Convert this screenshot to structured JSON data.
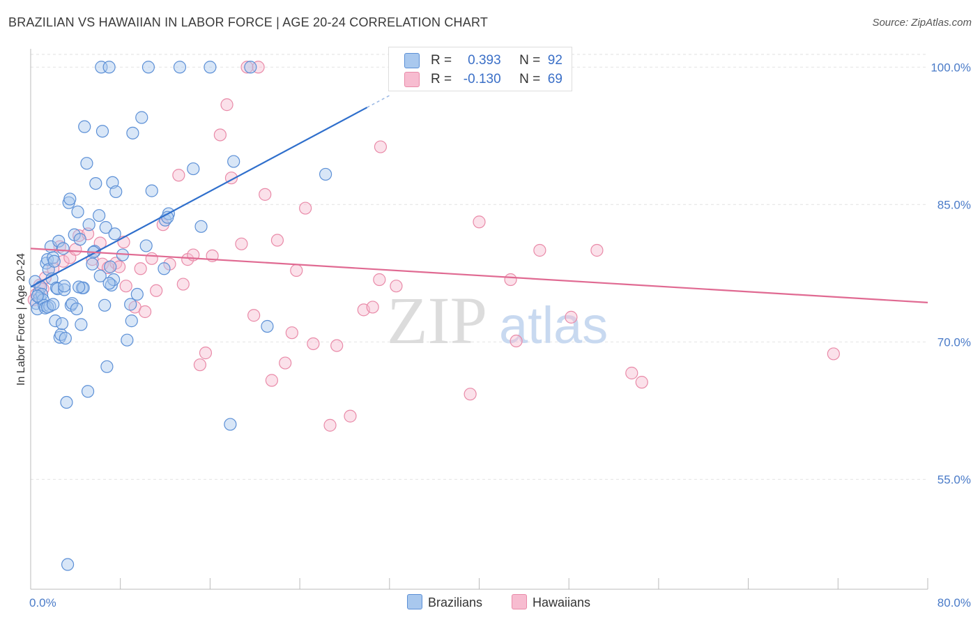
{
  "title": "BRAZILIAN VS HAWAIIAN IN LABOR FORCE | AGE 20-24 CORRELATION CHART",
  "source": "Source: ZipAtlas.com",
  "watermark": {
    "zip": "ZIP",
    "atlas": "atlas"
  },
  "colors": {
    "brazilian_fill": "#a9c8ee",
    "brazilian_stroke": "#5b8fd6",
    "brazilian_line": "#2f6fcc",
    "hawaiian_fill": "#f7bcd0",
    "hawaiian_stroke": "#e98aa8",
    "hawaiian_line": "#e06a92",
    "tick_text": "#4a7bc8",
    "grid": "#e2e2e2"
  },
  "legend": {
    "brazilian": {
      "r_label": "R =",
      "r_value": "0.393",
      "n_label": "N =",
      "n_value": "92"
    },
    "hawaiian": {
      "r_label": "R =",
      "r_value": "-0.130",
      "n_label": "N =",
      "n_value": "69"
    }
  },
  "bottom_legend": {
    "brazilians": "Brazilians",
    "hawaiians": "Hawaiians"
  },
  "chart_data": {
    "type": "scatter",
    "title": "BRAZILIAN VS HAWAIIAN IN LABOR FORCE | AGE 20-24 CORRELATION CHART",
    "xlabel": "",
    "ylabel": "In Labor Force | Age 20-24",
    "xlim": [
      0,
      80
    ],
    "ylim": [
      43,
      102
    ],
    "x_ticks": [
      0,
      8,
      16,
      24,
      32,
      40,
      48,
      56,
      64,
      72,
      80
    ],
    "x_tick_labels": [
      {
        "x": 0,
        "label": "0.0%"
      },
      {
        "x": 80,
        "label": "80.0%"
      }
    ],
    "y_ticks": [
      {
        "y": 55,
        "label": "55.0%"
      },
      {
        "y": 70,
        "label": "70.0%"
      },
      {
        "y": 85,
        "label": "85.0%"
      },
      {
        "y": 100,
        "label": "100.0%"
      }
    ],
    "grid": true,
    "legend_position": "top-center",
    "series": [
      {
        "name": "Brazilians",
        "R": 0.393,
        "N": 92,
        "trend": {
          "x": [
            0,
            30
          ],
          "y": [
            76.0,
            95.6
          ],
          "dashed_to": [
            32,
            96.9
          ]
        },
        "points": [
          [
            0.4,
            76.6
          ],
          [
            0.5,
            74.2
          ],
          [
            0.6,
            73.6
          ],
          [
            0.7,
            75.3
          ],
          [
            0.8,
            74.8
          ],
          [
            0.9,
            76.0
          ],
          [
            1.0,
            75.2
          ],
          [
            1.1,
            74.6
          ],
          [
            1.2,
            74.0
          ],
          [
            1.3,
            73.7
          ],
          [
            1.4,
            78.6
          ],
          [
            1.5,
            79.0
          ],
          [
            1.6,
            77.9
          ],
          [
            1.7,
            73.9
          ],
          [
            1.8,
            80.4
          ],
          [
            1.9,
            76.9
          ],
          [
            2.0,
            79.2
          ],
          [
            2.1,
            78.8
          ],
          [
            2.2,
            72.3
          ],
          [
            2.3,
            75.9
          ],
          [
            2.4,
            75.8
          ],
          [
            2.5,
            81.0
          ],
          [
            2.6,
            70.5
          ],
          [
            2.7,
            70.8
          ],
          [
            2.8,
            72.0
          ],
          [
            2.9,
            80.2
          ],
          [
            3.0,
            75.7
          ],
          [
            3.1,
            70.4
          ],
          [
            3.2,
            63.4
          ],
          [
            3.3,
            45.7
          ],
          [
            3.4,
            85.2
          ],
          [
            3.5,
            85.6
          ],
          [
            3.6,
            74.0
          ],
          [
            3.7,
            74.2
          ],
          [
            3.9,
            81.7
          ],
          [
            4.1,
            73.6
          ],
          [
            4.2,
            84.2
          ],
          [
            4.4,
            81.2
          ],
          [
            4.5,
            71.9
          ],
          [
            4.6,
            75.9
          ],
          [
            4.7,
            75.9
          ],
          [
            4.8,
            93.5
          ],
          [
            5.0,
            89.5
          ],
          [
            5.1,
            64.6
          ],
          [
            5.2,
            82.8
          ],
          [
            5.5,
            78.5
          ],
          [
            5.7,
            79.9
          ],
          [
            5.8,
            87.3
          ],
          [
            6.1,
            83.8
          ],
          [
            6.2,
            77.2
          ],
          [
            6.3,
            100.0
          ],
          [
            6.4,
            93.0
          ],
          [
            6.6,
            74.0
          ],
          [
            6.7,
            82.5
          ],
          [
            6.8,
            67.3
          ],
          [
            7.0,
            100.0
          ],
          [
            7.1,
            78.2
          ],
          [
            7.2,
            76.2
          ],
          [
            7.3,
            87.4
          ],
          [
            7.4,
            76.8
          ],
          [
            7.5,
            81.8
          ],
          [
            7.6,
            86.4
          ],
          [
            8.2,
            79.5
          ],
          [
            8.6,
            70.2
          ],
          [
            8.9,
            74.1
          ],
          [
            9.0,
            72.3
          ],
          [
            9.1,
            92.8
          ],
          [
            9.5,
            75.2
          ],
          [
            9.9,
            94.5
          ],
          [
            10.3,
            80.5
          ],
          [
            10.5,
            100.0
          ],
          [
            10.8,
            86.5
          ],
          [
            11.9,
            78.0
          ],
          [
            12.0,
            83.3
          ],
          [
            12.3,
            84.0
          ],
          [
            13.3,
            100.0
          ],
          [
            14.5,
            88.9
          ],
          [
            15.2,
            82.6
          ],
          [
            16.0,
            100.0
          ],
          [
            17.8,
            61.0
          ],
          [
            18.1,
            89.7
          ],
          [
            19.6,
            100.0
          ],
          [
            21.1,
            71.7
          ],
          [
            26.3,
            88.3
          ],
          [
            0.6,
            75.0
          ],
          [
            1.5,
            73.8
          ],
          [
            2.0,
            74.1
          ],
          [
            3.0,
            76.1
          ],
          [
            4.3,
            76.0
          ],
          [
            5.6,
            79.8
          ],
          [
            7.0,
            76.4
          ],
          [
            12.2,
            83.6
          ]
        ]
      },
      {
        "name": "Hawaiians",
        "R": -0.13,
        "N": 69,
        "trend": {
          "x": [
            0,
            80
          ],
          "y": [
            80.2,
            74.3
          ]
        },
        "points": [
          [
            0.3,
            74.6
          ],
          [
            0.5,
            75.2
          ],
          [
            0.8,
            76.2
          ],
          [
            1.1,
            75.8
          ],
          [
            1.3,
            77.0
          ],
          [
            2.0,
            78.0
          ],
          [
            2.6,
            80.4
          ],
          [
            2.9,
            78.8
          ],
          [
            3.5,
            79.2
          ],
          [
            4.0,
            80.1
          ],
          [
            4.3,
            81.6
          ],
          [
            5.1,
            81.8
          ],
          [
            5.5,
            79.0
          ],
          [
            6.2,
            80.8
          ],
          [
            6.4,
            78.5
          ],
          [
            6.9,
            78.1
          ],
          [
            7.6,
            78.6
          ],
          [
            7.9,
            78.2
          ],
          [
            8.3,
            80.9
          ],
          [
            8.5,
            76.1
          ],
          [
            9.3,
            73.8
          ],
          [
            9.8,
            78.0
          ],
          [
            10.2,
            73.3
          ],
          [
            10.8,
            79.1
          ],
          [
            11.2,
            75.6
          ],
          [
            11.8,
            82.8
          ],
          [
            12.4,
            78.5
          ],
          [
            13.2,
            88.2
          ],
          [
            13.6,
            76.3
          ],
          [
            14.0,
            79.0
          ],
          [
            14.5,
            79.5
          ],
          [
            15.1,
            67.5
          ],
          [
            15.6,
            68.8
          ],
          [
            16.2,
            79.4
          ],
          [
            16.9,
            92.6
          ],
          [
            17.5,
            95.9
          ],
          [
            17.9,
            87.9
          ],
          [
            18.8,
            80.7
          ],
          [
            19.3,
            100.0
          ],
          [
            19.9,
            72.9
          ],
          [
            20.3,
            100.0
          ],
          [
            20.9,
            86.1
          ],
          [
            21.5,
            65.8
          ],
          [
            22.0,
            81.1
          ],
          [
            22.7,
            67.7
          ],
          [
            23.3,
            71.0
          ],
          [
            23.7,
            77.8
          ],
          [
            24.5,
            84.6
          ],
          [
            25.2,
            69.8
          ],
          [
            26.7,
            60.9
          ],
          [
            27.3,
            69.6
          ],
          [
            28.5,
            61.9
          ],
          [
            29.7,
            73.5
          ],
          [
            30.5,
            73.8
          ],
          [
            31.1,
            76.8
          ],
          [
            31.2,
            91.3
          ],
          [
            32.6,
            76.1
          ],
          [
            35.7,
            98.2
          ],
          [
            36.0,
            100.0
          ],
          [
            39.2,
            64.3
          ],
          [
            40.0,
            83.1
          ],
          [
            42.8,
            76.8
          ],
          [
            43.3,
            70.1
          ],
          [
            45.4,
            80.0
          ],
          [
            48.2,
            72.7
          ],
          [
            50.5,
            80.0
          ],
          [
            53.6,
            66.6
          ],
          [
            54.5,
            65.6
          ],
          [
            71.6,
            68.7
          ]
        ]
      }
    ]
  }
}
